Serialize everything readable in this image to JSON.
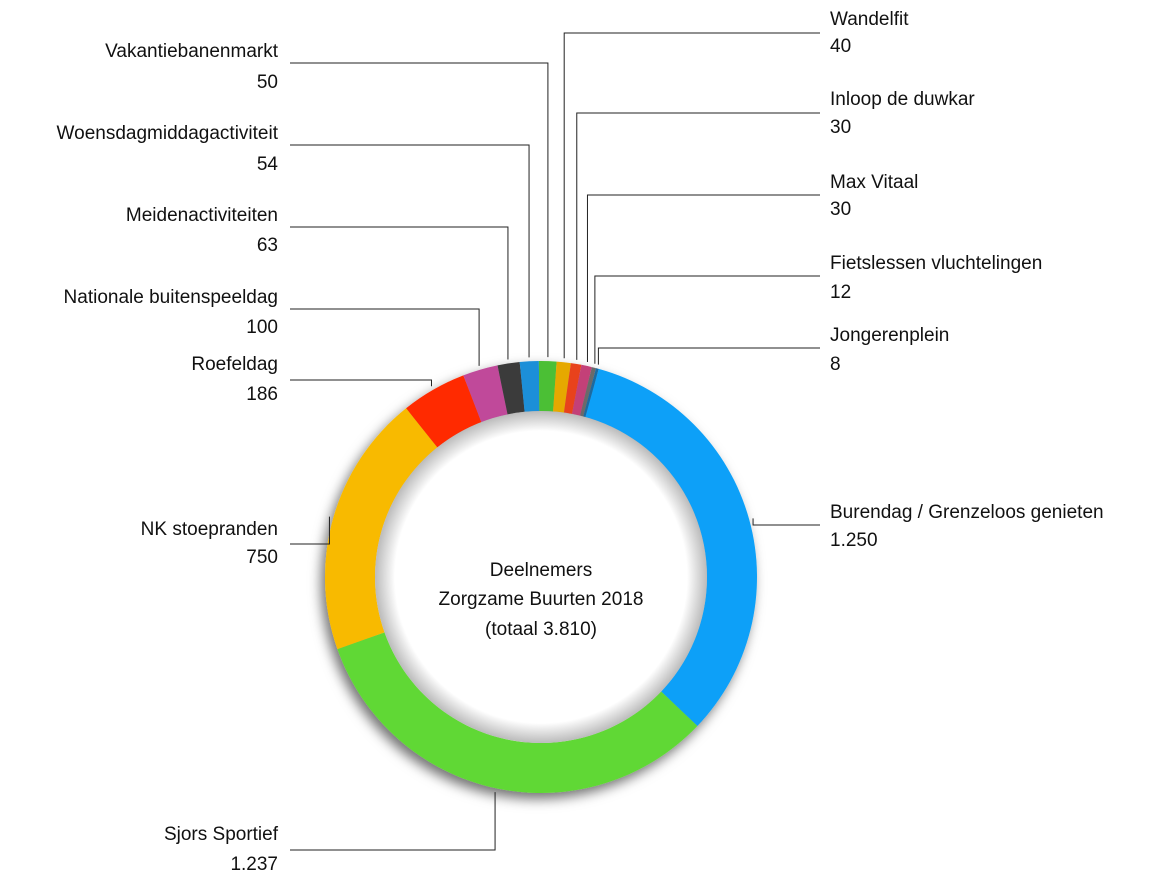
{
  "chart_data": {
    "type": "donut",
    "title": [
      "Deelnemers",
      "Zorgzame Buurten 2018",
      "(totaal 3.810)"
    ],
    "categories": [
      "Burendag / Grenzeloos genieten",
      "Sjors Sportief",
      "NK stoepranden",
      "Roefeldag",
      "Nationale buitenspeeldag",
      "Meidenactiviteiten",
      "Woensdagmiddagactiviteit",
      "Vakantiebanenmarkt",
      "Wandelfit",
      "Inloop de duwkar",
      "Max Vitaal",
      "Fietslessen vluchtelingen",
      "Jongerenplein"
    ],
    "values": [
      1250,
      1237,
      750,
      186,
      100,
      63,
      54,
      50,
      40,
      30,
      30,
      12,
      8
    ],
    "value_labels": [
      "1.250",
      "1.237",
      "750",
      "186",
      "100",
      "63",
      "54",
      "50",
      "40",
      "30",
      "30",
      "12",
      "8"
    ],
    "colors": [
      "#0aa0f8",
      "#61d836",
      "#f8ba00",
      "#ff2a00",
      "#c0489a",
      "#3a3a3a",
      "#1d8fd8",
      "#4cbf34",
      "#e6a800",
      "#e8431e",
      "#c33f78",
      "#6a6a6a",
      "#1a6aa0"
    ]
  }
}
